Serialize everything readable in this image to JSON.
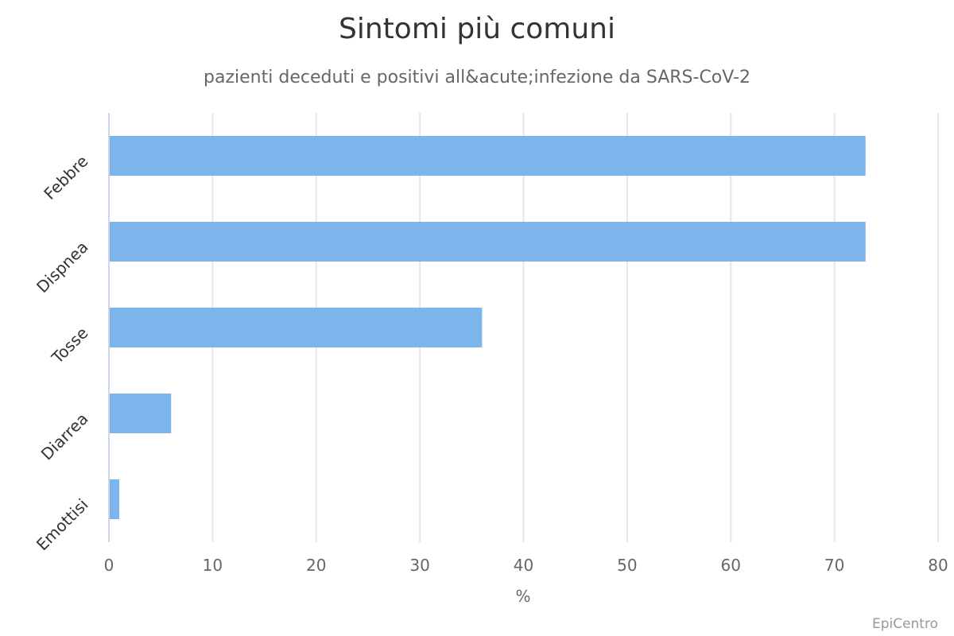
{
  "chart_data": {
    "type": "bar",
    "orientation": "horizontal",
    "title": "Sintomi più comuni",
    "subtitle": "pazienti deceduti e positivi all&acute;infezione da SARS-CoV-2",
    "categories": [
      "Febbre",
      "Dispnea",
      "Tosse",
      "Diarrea",
      "Emottisi"
    ],
    "values": [
      73,
      73,
      36,
      6,
      1
    ],
    "xlabel": "%",
    "ylabel": "",
    "xlim": [
      0,
      80
    ],
    "x_ticks": [
      "0",
      "10",
      "20",
      "30",
      "40",
      "50",
      "60",
      "70",
      "80"
    ],
    "grid": true,
    "legend": "none",
    "credits": "EpiCentro",
    "colors": {
      "bar": "#7cb5ec",
      "grid": "#e6e6e6",
      "axis": "#ccd6eb"
    }
  }
}
